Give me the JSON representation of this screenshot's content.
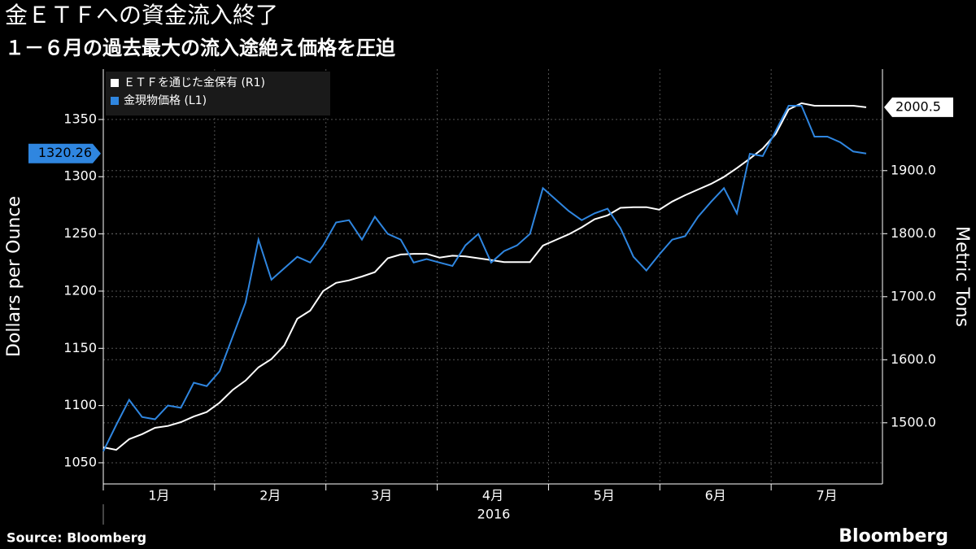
{
  "chart_data": {
    "type": "line",
    "title": "金ＥＴＦへの資金流入終了",
    "subtitle": "１－６月の過去最大の流入途絶え価格を圧迫",
    "y_label": "Dollars per Ounce",
    "y2_label": "Metric Tons",
    "months": [
      "1月",
      "2月",
      "3月",
      "4月",
      "5月",
      "6月",
      "7月"
    ],
    "year": "2016",
    "source": "Source: Bloomberg",
    "brand": "Bloomberg",
    "ylim": [
      1031.5,
      1394
    ],
    "yticks": [
      1050,
      1100,
      1150,
      1200,
      1250,
      1300,
      1350
    ],
    "y2lim": [
      1403,
      2061
    ],
    "y2ticks": [
      {
        "value": 1500,
        "label": "1500.0"
      },
      {
        "value": 1600,
        "label": "1600.0"
      },
      {
        "value": 1700,
        "label": "1700.0"
      },
      {
        "value": 1800,
        "label": "1800.0"
      },
      {
        "value": 1900,
        "label": "1900.0"
      }
    ],
    "grid": true,
    "series": [
      {
        "name": "ＥＴＦを通じた金保有 (R1)",
        "color": "#ffffff",
        "axis": "y2",
        "values": [
          1461,
          1457,
          1474,
          1482,
          1492,
          1495,
          1501,
          1510,
          1517,
          1532,
          1552,
          1567,
          1588,
          1601,
          1623,
          1665,
          1678,
          1709,
          1722,
          1726,
          1732,
          1739,
          1761,
          1767,
          1768,
          1768,
          1762,
          1765,
          1764,
          1761,
          1758,
          1755,
          1755,
          1755,
          1781,
          1790,
          1799,
          1810,
          1823,
          1829,
          1841,
          1842,
          1842,
          1838,
          1851,
          1861,
          1870,
          1879,
          1890,
          1904,
          1919,
          1935,
          1958,
          1997,
          2007,
          2003,
          2003,
          2003,
          2003,
          2000.5
        ],
        "value_labels": {
          "59": "2000.5"
        }
      },
      {
        "name": "金現物価格 (L1)",
        "color": "#2f86e0",
        "axis": "y",
        "values": [
          1060,
          1083,
          1105,
          1090,
          1088,
          1100,
          1098,
          1120,
          1117,
          1130,
          1160,
          1190,
          1245,
          1210,
          1220,
          1230,
          1225,
          1240,
          1260,
          1262,
          1245,
          1265,
          1250,
          1245,
          1225,
          1228,
          1225,
          1222,
          1240,
          1250,
          1225,
          1235,
          1240,
          1250,
          1290,
          1280,
          1270,
          1262,
          1268,
          1272,
          1255,
          1230,
          1218,
          1232,
          1245,
          1248,
          1265,
          1278,
          1290,
          1268,
          1320,
          1318,
          1340,
          1362,
          1362,
          1335,
          1335,
          1330,
          1322,
          1320.26
        ],
        "value_labels": {
          "59": "1320.26"
        }
      }
    ]
  }
}
